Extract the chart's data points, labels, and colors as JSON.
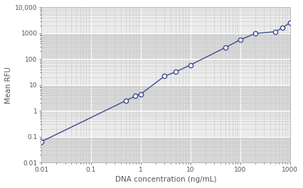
{
  "title": "",
  "xlabel": "DNA concentration (ng/mL)",
  "ylabel": "Mean RFU",
  "xlim": [
    0.01,
    1000
  ],
  "ylim": [
    0.01,
    10000
  ],
  "x_data": [
    0.01,
    0.5,
    0.78,
    1.0,
    3.0,
    5.0,
    10.0,
    50.0,
    100.0,
    200.0,
    500.0,
    700.0,
    1000.0
  ],
  "y_data": [
    0.065,
    2.5,
    3.8,
    4.5,
    22.0,
    32.0,
    60.0,
    280.0,
    560.0,
    980.0,
    1150.0,
    1600.0,
    2600.0
  ],
  "line_color": "#3d4b8e",
  "marker_color": "#3d4b8e",
  "marker_face": "white",
  "bg_color": "#e8e8e8",
  "band_light": "#ebebeb",
  "band_dark": "#d8d8d8",
  "grid_major_color": "#ffffff",
  "grid_minor_color": "#cccccc",
  "axis_label_fontsize": 7.5,
  "tick_fontsize": 6.5,
  "xtick_labels": [
    "0.01",
    "0.1",
    "1",
    "10",
    "100",
    "1000"
  ],
  "xtick_vals": [
    0.01,
    0.1,
    1,
    10,
    100,
    1000
  ],
  "ytick_labels": [
    "0.01",
    "0.1",
    "1",
    "10",
    "100",
    "1000",
    "10,000"
  ],
  "ytick_vals": [
    0.01,
    0.1,
    1,
    10,
    100,
    1000,
    10000
  ]
}
